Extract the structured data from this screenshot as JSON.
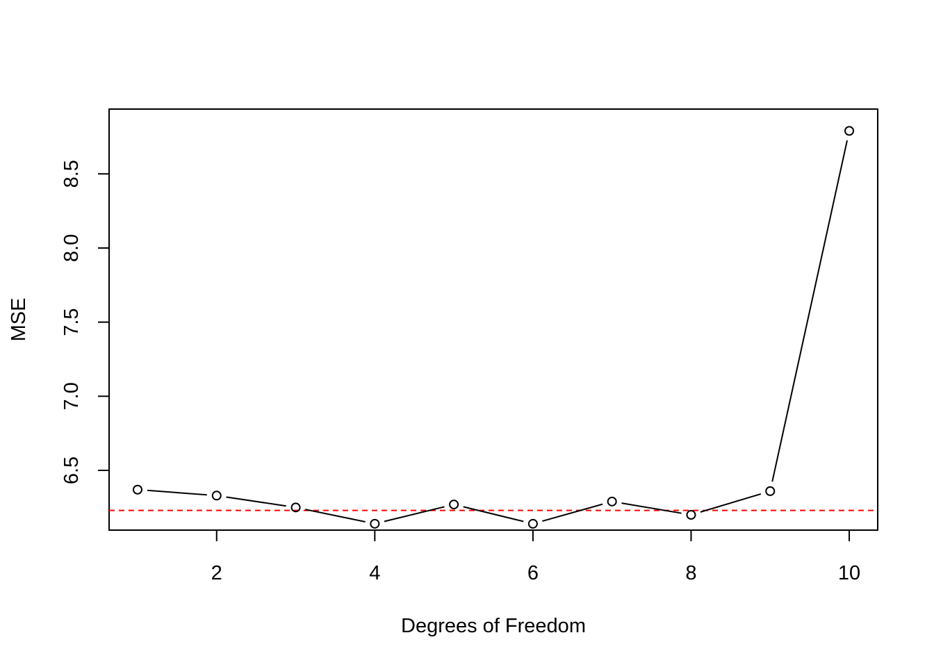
{
  "chart_data": {
    "type": "line",
    "title": "",
    "xlabel": "Degrees of Freedom",
    "ylabel": "MSE",
    "x": [
      1,
      2,
      3,
      4,
      5,
      6,
      7,
      8,
      9,
      10
    ],
    "series": [
      {
        "values": [
          6.37,
          6.33,
          6.25,
          6.14,
          6.27,
          6.14,
          6.29,
          6.2,
          6.36,
          8.79
        ]
      }
    ],
    "reference_line": {
      "y": 6.23,
      "color": "#ff0000",
      "style": "dashed"
    },
    "xlim": [
      0.64,
      10.36
    ],
    "ylim": [
      6.097,
      8.937
    ],
    "xticks": [
      2,
      4,
      6,
      8,
      10
    ],
    "xtick_labels": [
      "2",
      "4",
      "6",
      "8",
      "10"
    ],
    "yticks": [
      6.5,
      7.0,
      7.5,
      8.0,
      8.5
    ],
    "ytick_labels": [
      "6.5",
      "7.0",
      "7.5",
      "8.0",
      "8.5"
    ],
    "marker": "open-circle",
    "grid": false,
    "legend": "none"
  }
}
